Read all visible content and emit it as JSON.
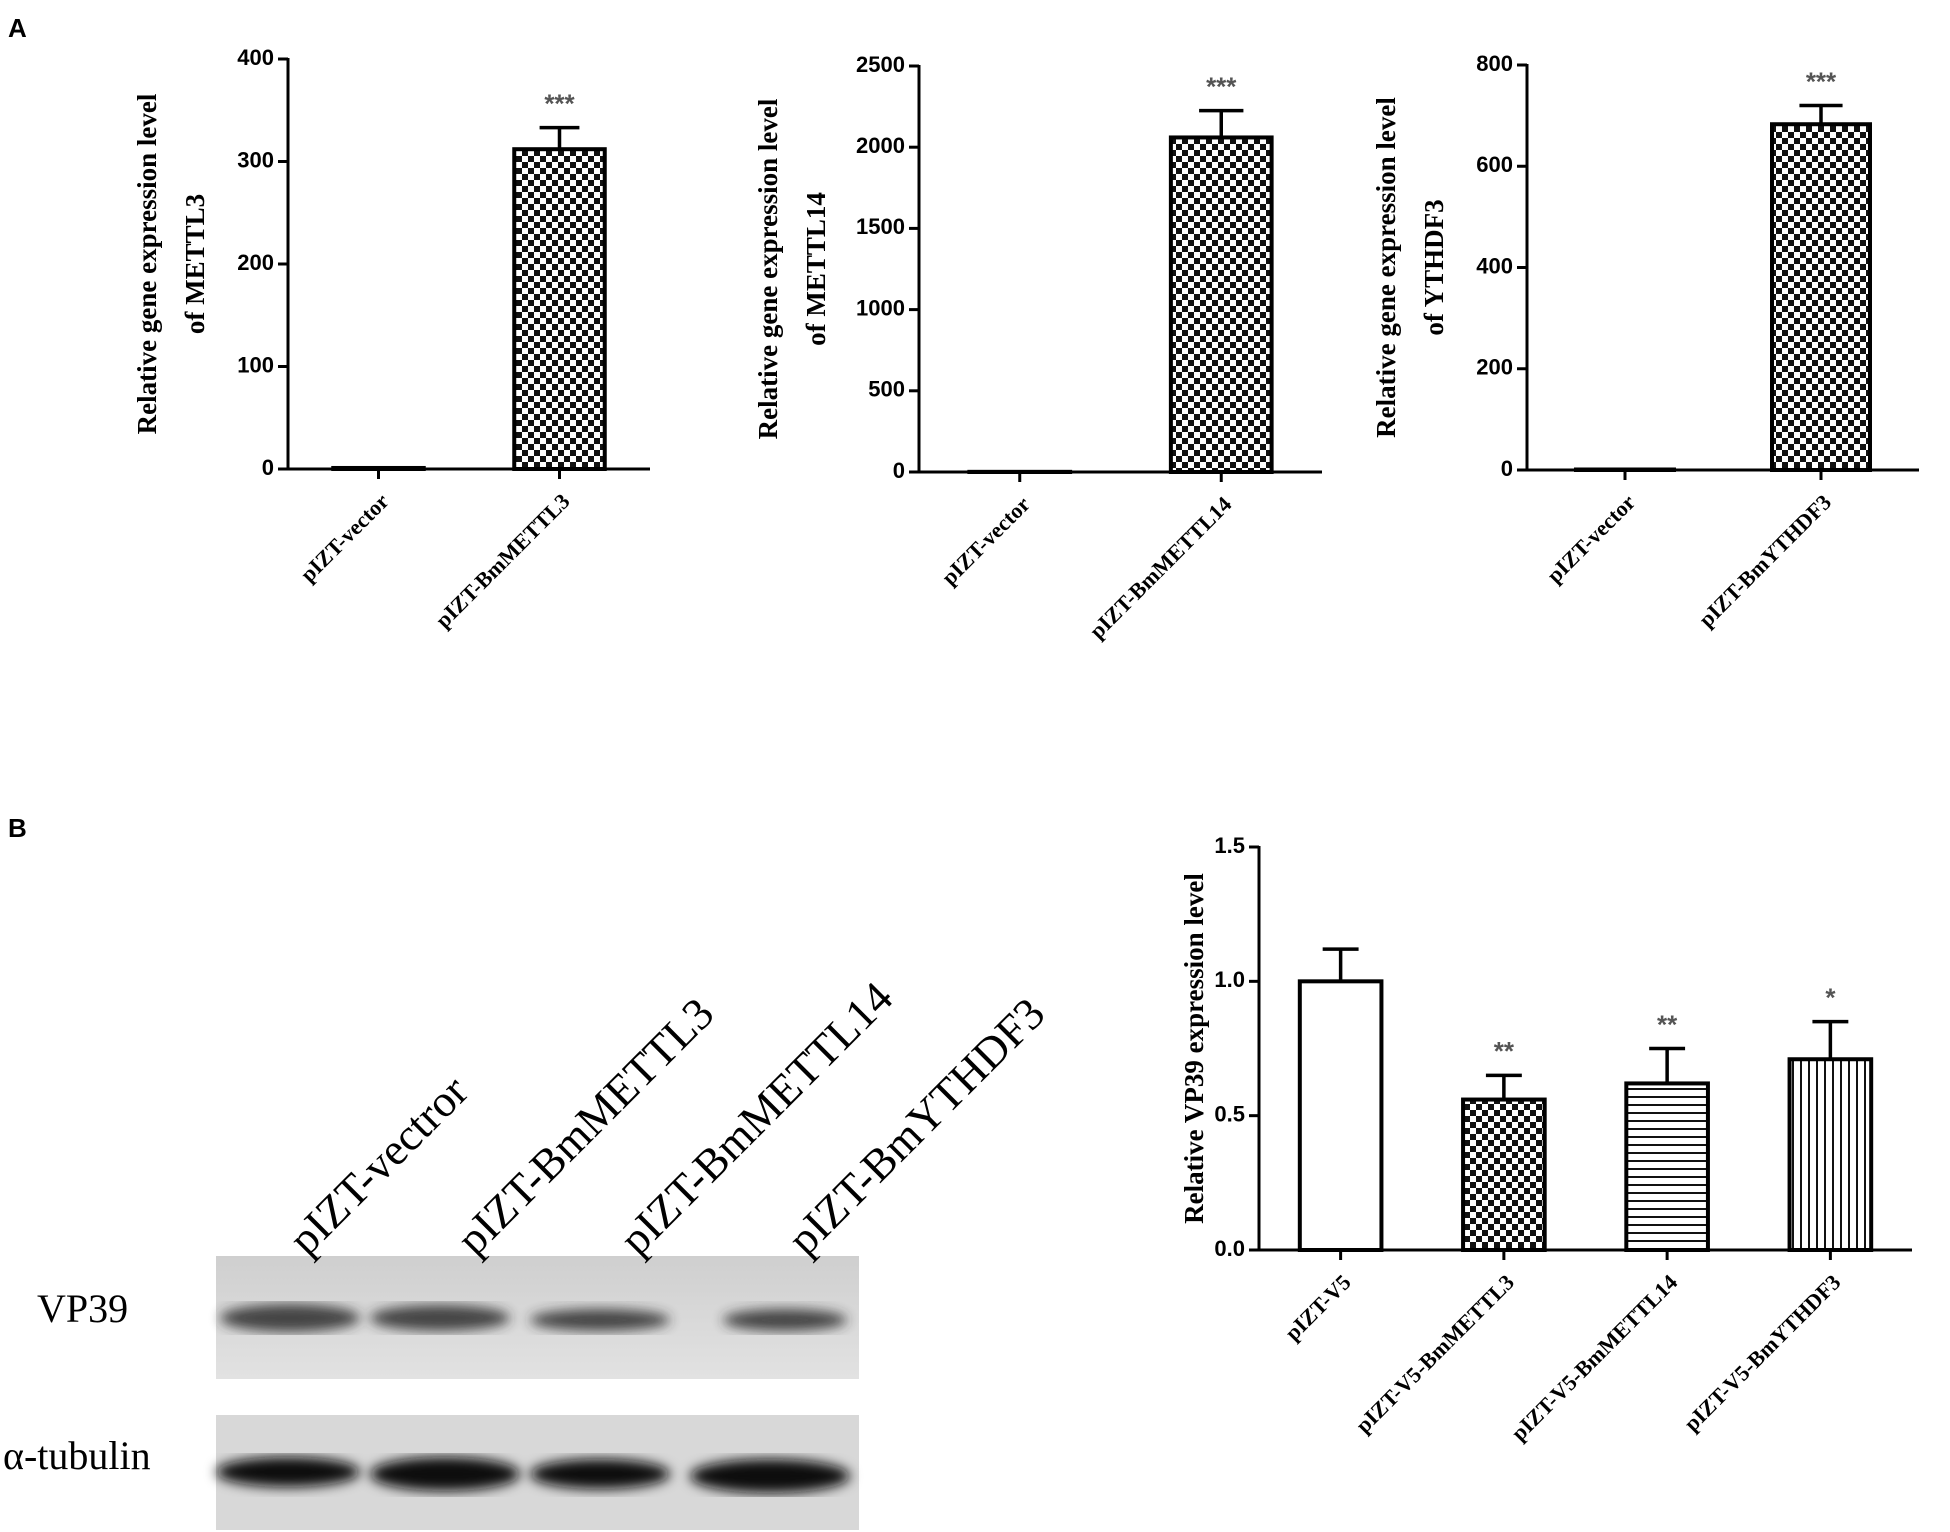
{
  "panels": {
    "a": "A",
    "b": "B"
  },
  "blot": {
    "lanes": [
      "pIZT-vectror",
      "pIZT-BmMETTL3",
      "pIZT-BmMETTL14",
      "pIZT-BmYTHDF3"
    ],
    "bands": [
      "VP39",
      "α-tubulin"
    ]
  },
  "chart_data": [
    {
      "type": "bar",
      "ylabel": [
        "Relative gene expression level",
        "of METTL3"
      ],
      "categories": [
        "pIZT-vector",
        "pIZT-BmMETTL3"
      ],
      "values": [
        1,
        312
      ],
      "errors": [
        0,
        21
      ],
      "significance": [
        null,
        "***"
      ],
      "patterns": [
        "checker",
        "checker"
      ],
      "ylim": [
        0,
        400
      ],
      "yticks": [
        0,
        100,
        200,
        300,
        400
      ]
    },
    {
      "type": "bar",
      "ylabel": [
        "Relative gene expression level",
        "of METTL14"
      ],
      "categories": [
        "pIZT-vector",
        "pIZT-BmMETTL14"
      ],
      "values": [
        1,
        2060
      ],
      "errors": [
        0,
        165
      ],
      "significance": [
        null,
        "***"
      ],
      "patterns": [
        "checker",
        "checker"
      ],
      "ylim": [
        0,
        2500
      ],
      "yticks": [
        0,
        500,
        1000,
        1500,
        2000,
        2500
      ]
    },
    {
      "type": "bar",
      "ylabel": [
        "Relative gene expression level",
        "of YTHDF3"
      ],
      "categories": [
        "pIZT-vector",
        "pIZT-BmYTHDF3"
      ],
      "values": [
        1,
        683
      ],
      "errors": [
        0,
        37
      ],
      "significance": [
        null,
        "***"
      ],
      "patterns": [
        "checker",
        "checker"
      ],
      "ylim": [
        0,
        800
      ],
      "yticks": [
        0,
        200,
        400,
        600,
        800
      ]
    },
    {
      "type": "bar",
      "ylabel": [
        "Relative VP39 expression level"
      ],
      "categories": [
        "pIZT-V5",
        "pIZT-V5-BmMETTL3",
        "pIZT-V5-BmMETTL14",
        "pIZT-V5-BmYTHDF3"
      ],
      "values": [
        1.0,
        0.56,
        0.62,
        0.71
      ],
      "errors": [
        0.12,
        0.09,
        0.13,
        0.14
      ],
      "significance": [
        null,
        "**",
        "**",
        "*"
      ],
      "patterns": [
        "none",
        "checker",
        "horizontal",
        "vertical"
      ],
      "ylim": [
        0,
        1.5
      ],
      "yticks": [
        {
          "value": 0,
          "label": "0.0"
        },
        0.5,
        {
          "value": 1,
          "label": "1.0"
        },
        1.5
      ]
    }
  ]
}
